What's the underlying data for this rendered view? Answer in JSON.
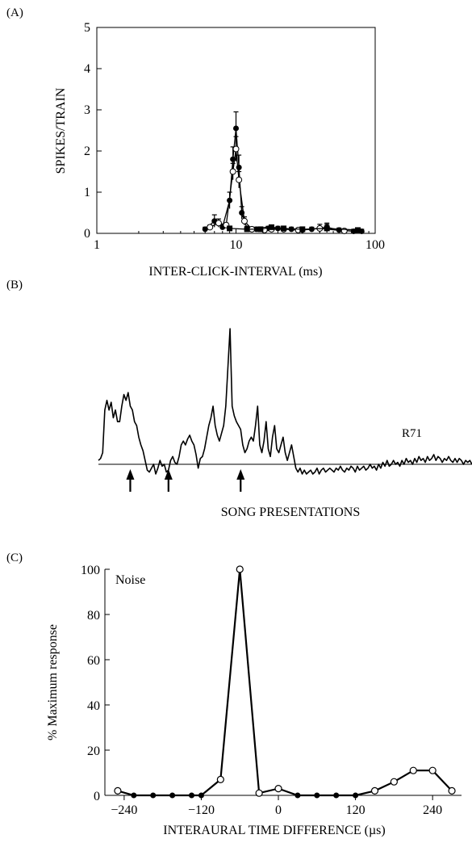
{
  "panels": [
    {
      "label": "(A)"
    },
    {
      "label": "(B)"
    },
    {
      "label": "(C)"
    }
  ],
  "chart_data": [
    {
      "type": "line",
      "panel": "(A)",
      "xlabel": "INTER-CLICK-INTERVAL (ms)",
      "ylabel": "SPIKES/TRAIN",
      "xscale": "log",
      "xlim": [
        1,
        100
      ],
      "ylim": [
        0,
        5
      ],
      "xticks": [
        1,
        10,
        100
      ],
      "yticks": [
        0,
        1,
        2,
        3,
        4,
        5
      ],
      "grid": false,
      "series": [
        {
          "marker": "filled-circle",
          "x": [
            6.0,
            7.0,
            8.0,
            9.0,
            9.5,
            10.0,
            10.5,
            11.0,
            12.0,
            14.0,
            17.0,
            20.0,
            25.0,
            30.0,
            35.0,
            45.0,
            55.0,
            70.0,
            80.0
          ],
          "y": [
            0.1,
            0.3,
            0.15,
            0.8,
            1.8,
            2.55,
            1.6,
            0.5,
            0.12,
            0.1,
            0.12,
            0.12,
            0.1,
            0.08,
            0.1,
            0.15,
            0.08,
            0.05,
            0.05
          ],
          "err": [
            0.05,
            0.15,
            0.05,
            0.2,
            0.3,
            0.4,
            0.3,
            0.15,
            0.05,
            0.05,
            0.05,
            0.05,
            0.05,
            0.05,
            0.05,
            0.1,
            0.05,
            0.05,
            0.05
          ]
        },
        {
          "marker": "open-circle",
          "x": [
            6.5,
            7.5,
            8.5,
            9.5,
            10.0,
            10.5,
            11.5,
            13.0,
            16.0,
            18.0,
            22.0,
            28.0,
            40.0,
            60.0
          ],
          "y": [
            0.15,
            0.25,
            0.2,
            1.5,
            2.05,
            1.3,
            0.3,
            0.1,
            0.08,
            0.1,
            0.1,
            0.08,
            0.12,
            0.06
          ],
          "err": [
            0.05,
            0.1,
            0.05,
            0.2,
            0.3,
            0.2,
            0.1,
            0.05,
            0.05,
            0.05,
            0.05,
            0.05,
            0.1,
            0.05
          ]
        },
        {
          "marker": "filled-square",
          "x": [
            9.0,
            12.0,
            15.0,
            18.0,
            22.0,
            30.0,
            45.0,
            75.0
          ],
          "y": [
            0.12,
            0.1,
            0.1,
            0.15,
            0.12,
            0.1,
            0.12,
            0.08
          ],
          "err": [
            0.05,
            0.05,
            0.05,
            0.05,
            0.05,
            0.05,
            0.1,
            0.05
          ]
        }
      ]
    },
    {
      "type": "line",
      "panel": "(B)",
      "xlabel": "SONG PRESENTATIONS",
      "annotation": "R71",
      "arrow_count": 3,
      "trace": [
        [
          0,
          0.02
        ],
        [
          1,
          0.03
        ],
        [
          2,
          0.06
        ],
        [
          3,
          0.28
        ],
        [
          4,
          0.33
        ],
        [
          5,
          0.28
        ],
        [
          6,
          0.32
        ],
        [
          7,
          0.24
        ],
        [
          8,
          0.28
        ],
        [
          9,
          0.22
        ],
        [
          10,
          0.22
        ],
        [
          11,
          0.3
        ],
        [
          12,
          0.36
        ],
        [
          13,
          0.33
        ],
        [
          14,
          0.37
        ],
        [
          15,
          0.3
        ],
        [
          16,
          0.28
        ],
        [
          17,
          0.22
        ],
        [
          18,
          0.2
        ],
        [
          19,
          0.14
        ],
        [
          20,
          0.1
        ],
        [
          21,
          0.07
        ],
        [
          22,
          0.02
        ],
        [
          23,
          -0.03
        ],
        [
          24,
          -0.04
        ],
        [
          25,
          -0.02
        ],
        [
          26,
          0.0
        ],
        [
          27,
          -0.05
        ],
        [
          28,
          -0.02
        ],
        [
          29,
          0.02
        ],
        [
          30,
          -0.01
        ],
        [
          31,
          0.0
        ],
        [
          32,
          -0.04
        ],
        [
          33,
          -0.03
        ],
        [
          34,
          0.02
        ],
        [
          35,
          0.04
        ],
        [
          36,
          0.01
        ],
        [
          37,
          0.0
        ],
        [
          38,
          0.04
        ],
        [
          39,
          0.1
        ],
        [
          40,
          0.12
        ],
        [
          41,
          0.1
        ],
        [
          42,
          0.13
        ],
        [
          43,
          0.15
        ],
        [
          44,
          0.12
        ],
        [
          45,
          0.1
        ],
        [
          46,
          0.05
        ],
        [
          47,
          -0.02
        ],
        [
          48,
          0.03
        ],
        [
          49,
          0.04
        ],
        [
          50,
          0.08
        ],
        [
          51,
          0.14
        ],
        [
          52,
          0.2
        ],
        [
          53,
          0.24
        ],
        [
          54,
          0.3
        ],
        [
          55,
          0.2
        ],
        [
          56,
          0.15
        ],
        [
          57,
          0.12
        ],
        [
          58,
          0.16
        ],
        [
          59,
          0.2
        ],
        [
          60,
          0.3
        ],
        [
          61,
          0.5
        ],
        [
          62,
          0.7
        ],
        [
          63,
          0.3
        ],
        [
          64,
          0.25
        ],
        [
          65,
          0.22
        ],
        [
          66,
          0.2
        ],
        [
          67,
          0.18
        ],
        [
          68,
          0.1
        ],
        [
          69,
          0.06
        ],
        [
          70,
          0.08
        ],
        [
          71,
          0.12
        ],
        [
          72,
          0.14
        ],
        [
          73,
          0.12
        ],
        [
          74,
          0.2
        ],
        [
          75,
          0.3
        ],
        [
          76,
          0.1
        ],
        [
          77,
          0.06
        ],
        [
          78,
          0.12
        ],
        [
          79,
          0.22
        ],
        [
          80,
          0.08
        ],
        [
          81,
          0.04
        ],
        [
          82,
          0.14
        ],
        [
          83,
          0.2
        ],
        [
          84,
          0.08
        ],
        [
          85,
          0.06
        ],
        [
          86,
          0.1
        ],
        [
          87,
          0.14
        ],
        [
          88,
          0.06
        ],
        [
          89,
          0.02
        ],
        [
          90,
          0.06
        ],
        [
          91,
          0.1
        ],
        [
          92,
          0.04
        ],
        [
          93,
          -0.02
        ],
        [
          94,
          -0.04
        ],
        [
          95,
          -0.02
        ],
        [
          96,
          -0.05
        ],
        [
          97,
          -0.03
        ],
        [
          98,
          -0.05
        ],
        [
          99,
          -0.04
        ],
        [
          100,
          -0.03
        ],
        [
          101,
          -0.05
        ],
        [
          102,
          -0.04
        ],
        [
          103,
          -0.02
        ],
        [
          104,
          -0.05
        ],
        [
          105,
          -0.03
        ],
        [
          106,
          -0.02
        ],
        [
          107,
          -0.04
        ],
        [
          108,
          -0.03
        ],
        [
          109,
          -0.02
        ],
        [
          110,
          -0.03
        ],
        [
          111,
          -0.04
        ],
        [
          112,
          -0.02
        ],
        [
          113,
          -0.03
        ],
        [
          114,
          -0.01
        ],
        [
          115,
          -0.03
        ],
        [
          116,
          -0.04
        ],
        [
          117,
          -0.02
        ],
        [
          118,
          -0.03
        ],
        [
          119,
          -0.01
        ],
        [
          120,
          -0.02
        ],
        [
          121,
          -0.04
        ],
        [
          122,
          -0.01
        ],
        [
          123,
          -0.03
        ],
        [
          124,
          -0.02
        ],
        [
          125,
          -0.01
        ],
        [
          126,
          -0.03
        ],
        [
          127,
          -0.02
        ],
        [
          128,
          0.0
        ],
        [
          129,
          -0.02
        ],
        [
          130,
          -0.01
        ],
        [
          131,
          -0.03
        ],
        [
          132,
          0.0
        ],
        [
          133,
          -0.02
        ],
        [
          134,
          0.01
        ],
        [
          135,
          -0.01
        ],
        [
          136,
          0.02
        ],
        [
          137,
          -0.01
        ],
        [
          138,
          0.0
        ],
        [
          139,
          0.02
        ],
        [
          140,
          0.0
        ],
        [
          141,
          0.01
        ],
        [
          142,
          -0.01
        ],
        [
          143,
          0.02
        ],
        [
          144,
          0.0
        ],
        [
          145,
          0.03
        ],
        [
          146,
          0.01
        ],
        [
          147,
          0.02
        ],
        [
          148,
          0.0
        ],
        [
          149,
          0.03
        ],
        [
          150,
          0.01
        ],
        [
          151,
          0.04
        ],
        [
          152,
          0.02
        ],
        [
          153,
          0.03
        ],
        [
          154,
          0.01
        ],
        [
          155,
          0.04
        ],
        [
          156,
          0.02
        ],
        [
          157,
          0.03
        ],
        [
          158,
          0.05
        ],
        [
          159,
          0.02
        ],
        [
          160,
          0.04
        ],
        [
          161,
          0.03
        ],
        [
          162,
          0.01
        ],
        [
          163,
          0.03
        ],
        [
          164,
          0.02
        ],
        [
          165,
          0.04
        ],
        [
          166,
          0.02
        ],
        [
          167,
          0.01
        ],
        [
          168,
          0.03
        ],
        [
          169,
          0.01
        ],
        [
          170,
          0.03
        ],
        [
          171,
          0.02
        ],
        [
          172,
          0.0
        ],
        [
          173,
          0.02
        ],
        [
          174,
          0.01
        ],
        [
          175,
          0.02
        ],
        [
          176,
          0.0
        ]
      ],
      "arrows_at": [
        15,
        33,
        67
      ]
    },
    {
      "type": "line",
      "panel": "(C)",
      "xlabel": "INTERAURAL TIME DIFFERENCE (µs)",
      "ylabel": "% Maximum response",
      "annotation": "Noise",
      "xlim": [
        -270,
        285
      ],
      "ylim": [
        0,
        100
      ],
      "xticks": [
        -240,
        -120,
        0,
        120,
        240
      ],
      "xticklabels": [
        "−240",
        "−120",
        "0",
        "120",
        "240"
      ],
      "yticks": [
        0,
        20,
        40,
        60,
        80,
        100
      ],
      "grid": false,
      "series": [
        {
          "marker": "open-circle",
          "x": [
            -250,
            -90,
            -60,
            -30,
            0,
            150,
            180,
            210,
            240,
            270
          ],
          "y": [
            2,
            7,
            100,
            1,
            3,
            2,
            6,
            11,
            11,
            2
          ]
        },
        {
          "marker": "filled-circle",
          "x": [
            -225,
            -195,
            -165,
            -135,
            -120,
            30,
            60,
            90,
            120
          ],
          "y": [
            0,
            0,
            0,
            0,
            0,
            0,
            0,
            0,
            0
          ]
        }
      ],
      "line_x": [
        -250,
        -225,
        -195,
        -165,
        -135,
        -120,
        -90,
        -60,
        -30,
        0,
        30,
        60,
        90,
        120,
        150,
        180,
        210,
        240,
        270
      ],
      "line_y": [
        2,
        0,
        0,
        0,
        0,
        0,
        7,
        100,
        1,
        3,
        0,
        0,
        0,
        0,
        2,
        6,
        11,
        11,
        2
      ]
    }
  ]
}
